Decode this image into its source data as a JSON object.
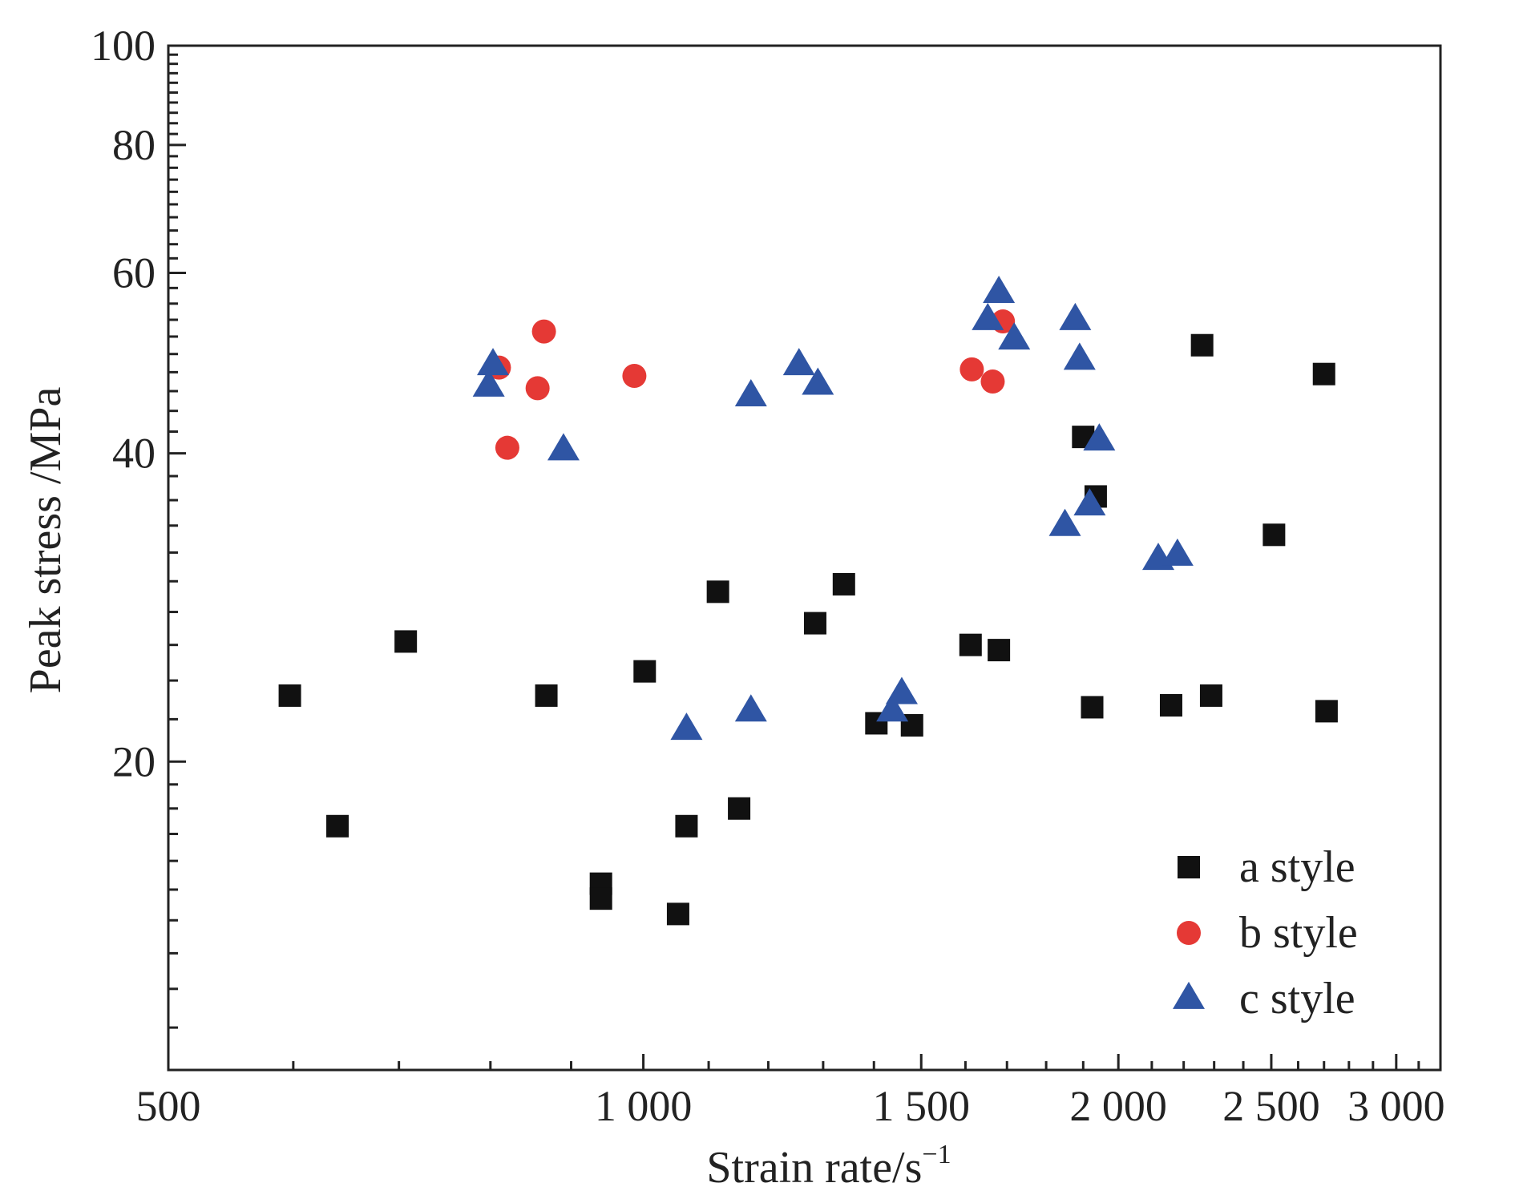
{
  "chart_data": {
    "type": "scatter",
    "xlabel": "Strain rate/s",
    "xlabel_sup": "−1",
    "ylabel": "Peak stress /MPa",
    "xscale": "log",
    "yscale": "log",
    "xlim": [
      500,
      3200
    ],
    "ylim": [
      10,
      100
    ],
    "x_ticks": [
      {
        "value": 500,
        "label": "500"
      },
      {
        "value": 1000,
        "label": "1 000"
      },
      {
        "value": 1500,
        "label": "1 500"
      },
      {
        "value": 2000,
        "label": "2 000"
      },
      {
        "value": 2500,
        "label": "2 500"
      },
      {
        "value": 3000,
        "label": "3 000"
      }
    ],
    "y_ticks": [
      {
        "value": 20,
        "label": "20"
      },
      {
        "value": 40,
        "label": "40"
      },
      {
        "value": 60,
        "label": "60"
      },
      {
        "value": 80,
        "label": "80"
      },
      {
        "value": 100,
        "label": "100"
      }
    ],
    "grid": false,
    "legend_position": "bottom-right",
    "series": [
      {
        "name": "a style",
        "marker": "square",
        "color": "#111111",
        "points": [
          [
            597,
            23.2
          ],
          [
            640,
            17.3
          ],
          [
            707,
            26.2
          ],
          [
            868,
            23.2
          ],
          [
            940,
            15.2
          ],
          [
            940,
            14.7
          ],
          [
            1002,
            24.5
          ],
          [
            1052,
            14.2
          ],
          [
            1065,
            17.3
          ],
          [
            1115,
            29.3
          ],
          [
            1150,
            18.0
          ],
          [
            1285,
            27.3
          ],
          [
            1340,
            29.8
          ],
          [
            1405,
            21.8
          ],
          [
            1480,
            21.7
          ],
          [
            1612,
            26.0
          ],
          [
            1680,
            25.7
          ],
          [
            1900,
            41.5
          ],
          [
            1925,
            22.6
          ],
          [
            1935,
            36.3
          ],
          [
            2160,
            22.7
          ],
          [
            2290,
            23.2
          ],
          [
            2260,
            51.0
          ],
          [
            2510,
            33.3
          ],
          [
            2700,
            47.8
          ],
          [
            2710,
            22.4
          ]
        ]
      },
      {
        "name": "b style",
        "marker": "circle",
        "color": "#e53935",
        "points": [
          [
            810,
            48.5
          ],
          [
            820,
            40.5
          ],
          [
            857,
            46.3
          ],
          [
            865,
            52.6
          ],
          [
            987,
            47.6
          ],
          [
            1615,
            48.3
          ],
          [
            1665,
            47.0
          ],
          [
            1690,
            53.8
          ]
        ]
      },
      {
        "name": "c style",
        "marker": "triangle",
        "color": "#2f55a4",
        "points": [
          [
            798,
            46.5
          ],
          [
            803,
            48.8
          ],
          [
            890,
            40.3
          ],
          [
            1065,
            21.5
          ],
          [
            1170,
            22.4
          ],
          [
            1170,
            45.5
          ],
          [
            1255,
            48.8
          ],
          [
            1290,
            46.7
          ],
          [
            1438,
            22.4
          ],
          [
            1458,
            23.3
          ],
          [
            1653,
            54.0
          ],
          [
            1680,
            57.4
          ],
          [
            1718,
            51.7
          ],
          [
            1850,
            34.0
          ],
          [
            1878,
            54.0
          ],
          [
            1890,
            49.4
          ],
          [
            1918,
            35.6
          ],
          [
            1945,
            41.2
          ],
          [
            2120,
            31.5
          ],
          [
            2180,
            31.8
          ]
        ]
      }
    ]
  }
}
